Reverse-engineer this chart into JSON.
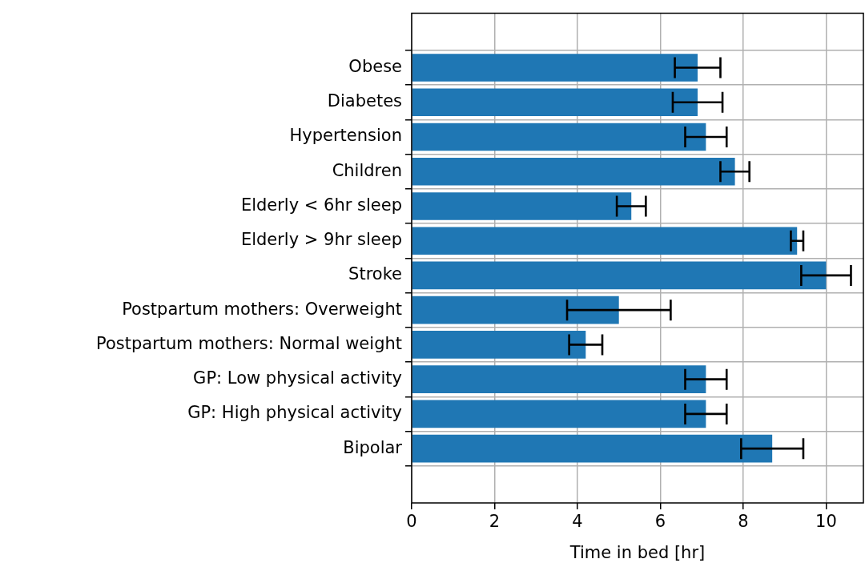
{
  "chart_data": {
    "type": "bar",
    "orientation": "horizontal",
    "xlabel": "Time in bed [hr]",
    "categories": [
      "Obese",
      "Diabetes",
      "Hypertension",
      "Children",
      "Elderly < 6hr sleep",
      "Elderly > 9hr sleep",
      "Stroke",
      "Postpartum mothers: Overweight",
      "Postpartum mothers: Normal weight",
      "GP: Low physical activity",
      "GP: High physical activity",
      "Bipolar"
    ],
    "values": [
      6.9,
      6.9,
      7.1,
      7.8,
      5.3,
      9.3,
      10.0,
      5.0,
      4.2,
      7.1,
      7.1,
      8.7
    ],
    "errors": [
      0.55,
      0.6,
      0.5,
      0.35,
      0.35,
      0.15,
      0.6,
      1.25,
      0.4,
      0.5,
      0.5,
      0.75
    ],
    "color": "#1f77b4",
    "xlim": [
      0,
      10.9
    ],
    "xticks": [
      0,
      2,
      4,
      6,
      8,
      10
    ],
    "grid": true,
    "legend": false
  }
}
